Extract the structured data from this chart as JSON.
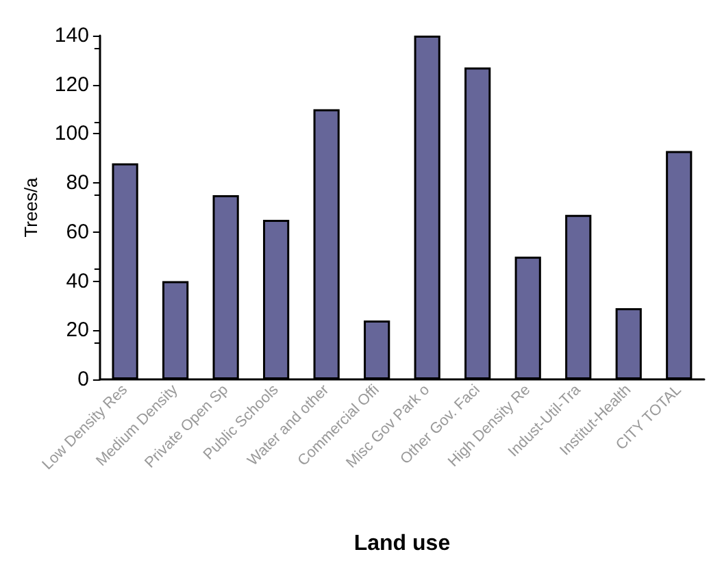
{
  "chart_data": {
    "type": "bar",
    "xlabel": "Land use",
    "ylabel": "Trees/a",
    "categories": [
      "Low Density Res",
      "Medium Density",
      "Private Open Sp",
      "Public Schools",
      "Water and other",
      "Commercial Offi",
      "Misc Gov Park o",
      "Other Gov. Faci",
      "High Density Re",
      "Indust-Util-Tra",
      "Institut-Health",
      "CITY TOTAL"
    ],
    "values": [
      88,
      40,
      75,
      65,
      110,
      24,
      140,
      127,
      50,
      67,
      29,
      93
    ],
    "color": "#666699",
    "ylim": [
      0,
      140
    ],
    "yticks": [
      0,
      20,
      40,
      60,
      80,
      100,
      120,
      140
    ],
    "grid": false
  }
}
